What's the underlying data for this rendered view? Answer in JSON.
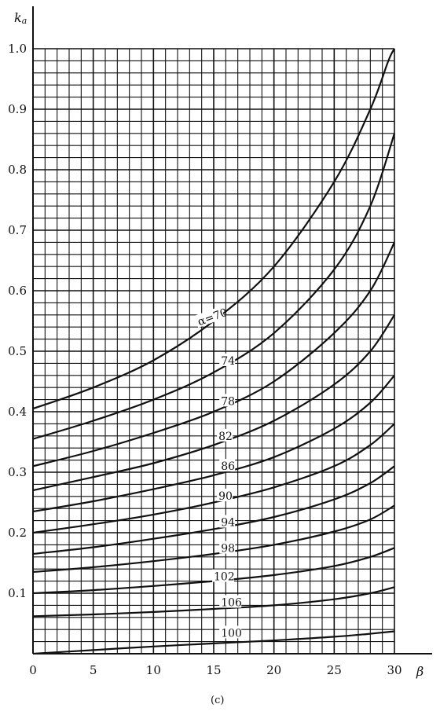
{
  "chart_data": {
    "type": "line",
    "title": "",
    "caption": "(c)",
    "ylabel": "k",
    "ylabel_sub": "a",
    "xlabel": "β",
    "xlim": [
      0,
      30
    ],
    "ylim": [
      0,
      1.0
    ],
    "xticks": [
      "0",
      "5",
      "10",
      "15",
      "20",
      "25",
      "30"
    ],
    "yticks": [
      "0.1",
      "0.2",
      "0.3",
      "0.4",
      "0.5",
      "0.6",
      "0.7",
      "0.8",
      "0.9",
      "1.0"
    ],
    "grid": true,
    "series": [
      {
        "label": "α=70",
        "x": [
          0,
          5,
          10,
          15,
          20,
          25,
          28,
          29.5,
          30
        ],
        "y": [
          0.405,
          0.44,
          0.485,
          0.55,
          0.64,
          0.78,
          0.9,
          0.98,
          1.0
        ]
      },
      {
        "label": "74",
        "x": [
          0,
          5,
          10,
          15,
          20,
          25,
          28,
          30
        ],
        "y": [
          0.355,
          0.385,
          0.42,
          0.465,
          0.53,
          0.635,
          0.74,
          0.86
        ]
      },
      {
        "label": "78",
        "x": [
          0,
          5,
          10,
          15,
          20,
          25,
          28,
          30
        ],
        "y": [
          0.31,
          0.335,
          0.365,
          0.4,
          0.45,
          0.53,
          0.6,
          0.68
        ]
      },
      {
        "label": "82",
        "x": [
          0,
          5,
          10,
          15,
          20,
          25,
          28,
          30
        ],
        "y": [
          0.27,
          0.292,
          0.315,
          0.345,
          0.385,
          0.445,
          0.5,
          0.56
        ]
      },
      {
        "label": "86",
        "x": [
          0,
          5,
          10,
          15,
          20,
          25,
          28,
          30
        ],
        "y": [
          0.235,
          0.252,
          0.272,
          0.295,
          0.325,
          0.372,
          0.415,
          0.46
        ]
      },
      {
        "label": "90",
        "x": [
          0,
          5,
          10,
          15,
          20,
          25,
          28,
          30
        ],
        "y": [
          0.2,
          0.214,
          0.23,
          0.25,
          0.275,
          0.31,
          0.345,
          0.38
        ]
      },
      {
        "label": "94",
        "x": [
          0,
          5,
          10,
          15,
          20,
          25,
          28,
          30
        ],
        "y": [
          0.165,
          0.176,
          0.19,
          0.206,
          0.226,
          0.255,
          0.282,
          0.31
        ]
      },
      {
        "label": "98",
        "x": [
          0,
          5,
          10,
          15,
          20,
          25,
          28,
          30
        ],
        "y": [
          0.135,
          0.143,
          0.153,
          0.165,
          0.18,
          0.202,
          0.222,
          0.245
        ]
      },
      {
        "label": "102",
        "x": [
          0,
          5,
          10,
          15,
          20,
          25,
          28,
          30
        ],
        "y": [
          0.1,
          0.105,
          0.112,
          0.12,
          0.13,
          0.145,
          0.16,
          0.175
        ]
      },
      {
        "label": "106",
        "x": [
          0,
          5,
          10,
          15,
          20,
          25,
          28,
          30
        ],
        "y": [
          0.062,
          0.065,
          0.069,
          0.074,
          0.08,
          0.09,
          0.1,
          0.11
        ]
      },
      {
        "label": "100",
        "x": [
          0,
          5,
          10,
          15,
          20,
          25,
          28,
          30
        ],
        "y": [
          0.0,
          0.006,
          0.012,
          0.017,
          0.022,
          0.028,
          0.033,
          0.037
        ]
      }
    ]
  }
}
